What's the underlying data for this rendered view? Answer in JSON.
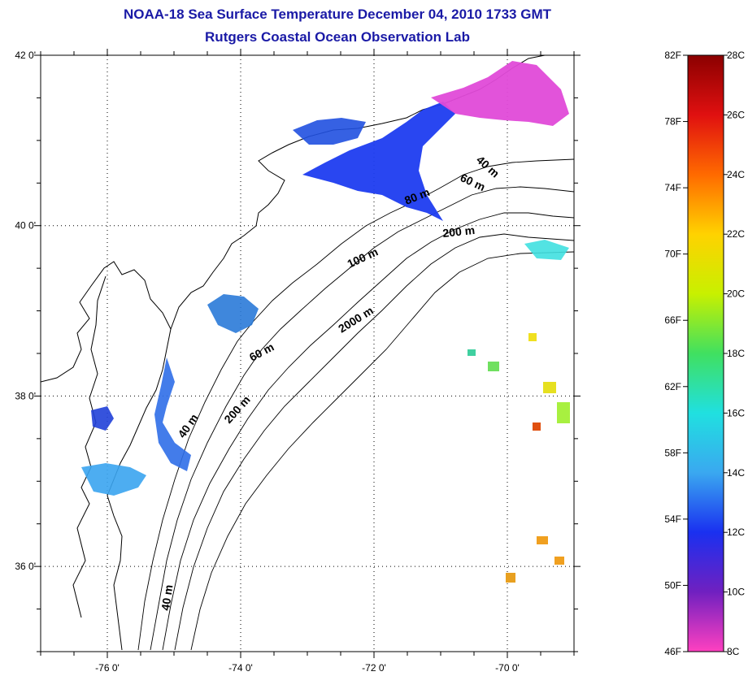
{
  "header": {
    "title": "NOAA-18 Sea Surface Temperature December 04, 2010 1733 GMT",
    "subtitle": "Rutgers Coastal Ocean Observation Lab"
  },
  "map": {
    "lon_range": [
      -77,
      -69
    ],
    "lat_range": [
      35,
      42
    ],
    "lon_ticks": [
      {
        "value": -76,
        "label": "-76 0'"
      },
      {
        "value": -74,
        "label": "-74 0'"
      },
      {
        "value": -72,
        "label": "-72 0'"
      },
      {
        "value": -70,
        "label": "-70 0'"
      }
    ],
    "lat_ticks": [
      {
        "value": 42,
        "label": "42 0'"
      },
      {
        "value": 40,
        "label": "40 0'"
      },
      {
        "value": 38,
        "label": "38 0'"
      },
      {
        "value": 36,
        "label": "36 0'"
      }
    ],
    "grid": "dotted",
    "contour_labels": [
      "40 m",
      "60 m",
      "80 m",
      "200 m",
      "100 m",
      "2000 m",
      "60 m",
      "200 m",
      "40 m",
      "40 m"
    ]
  },
  "colorbar": {
    "fahrenheit": [
      "82F",
      "78F",
      "74F",
      "70F",
      "66F",
      "62F",
      "58F",
      "54F",
      "50F",
      "46F"
    ],
    "celsius": [
      "28C",
      "26C",
      "24C",
      "22C",
      "20C",
      "18C",
      "16C",
      "14C",
      "12C",
      "10C",
      "8C"
    ],
    "colors": [
      "#8b0000",
      "#e01010",
      "#ff6a00",
      "#ffd200",
      "#c8f000",
      "#40e060",
      "#20e0e0",
      "#3aa8f0",
      "#1a30f0",
      "#7020c0",
      "#ff40c0"
    ]
  }
}
